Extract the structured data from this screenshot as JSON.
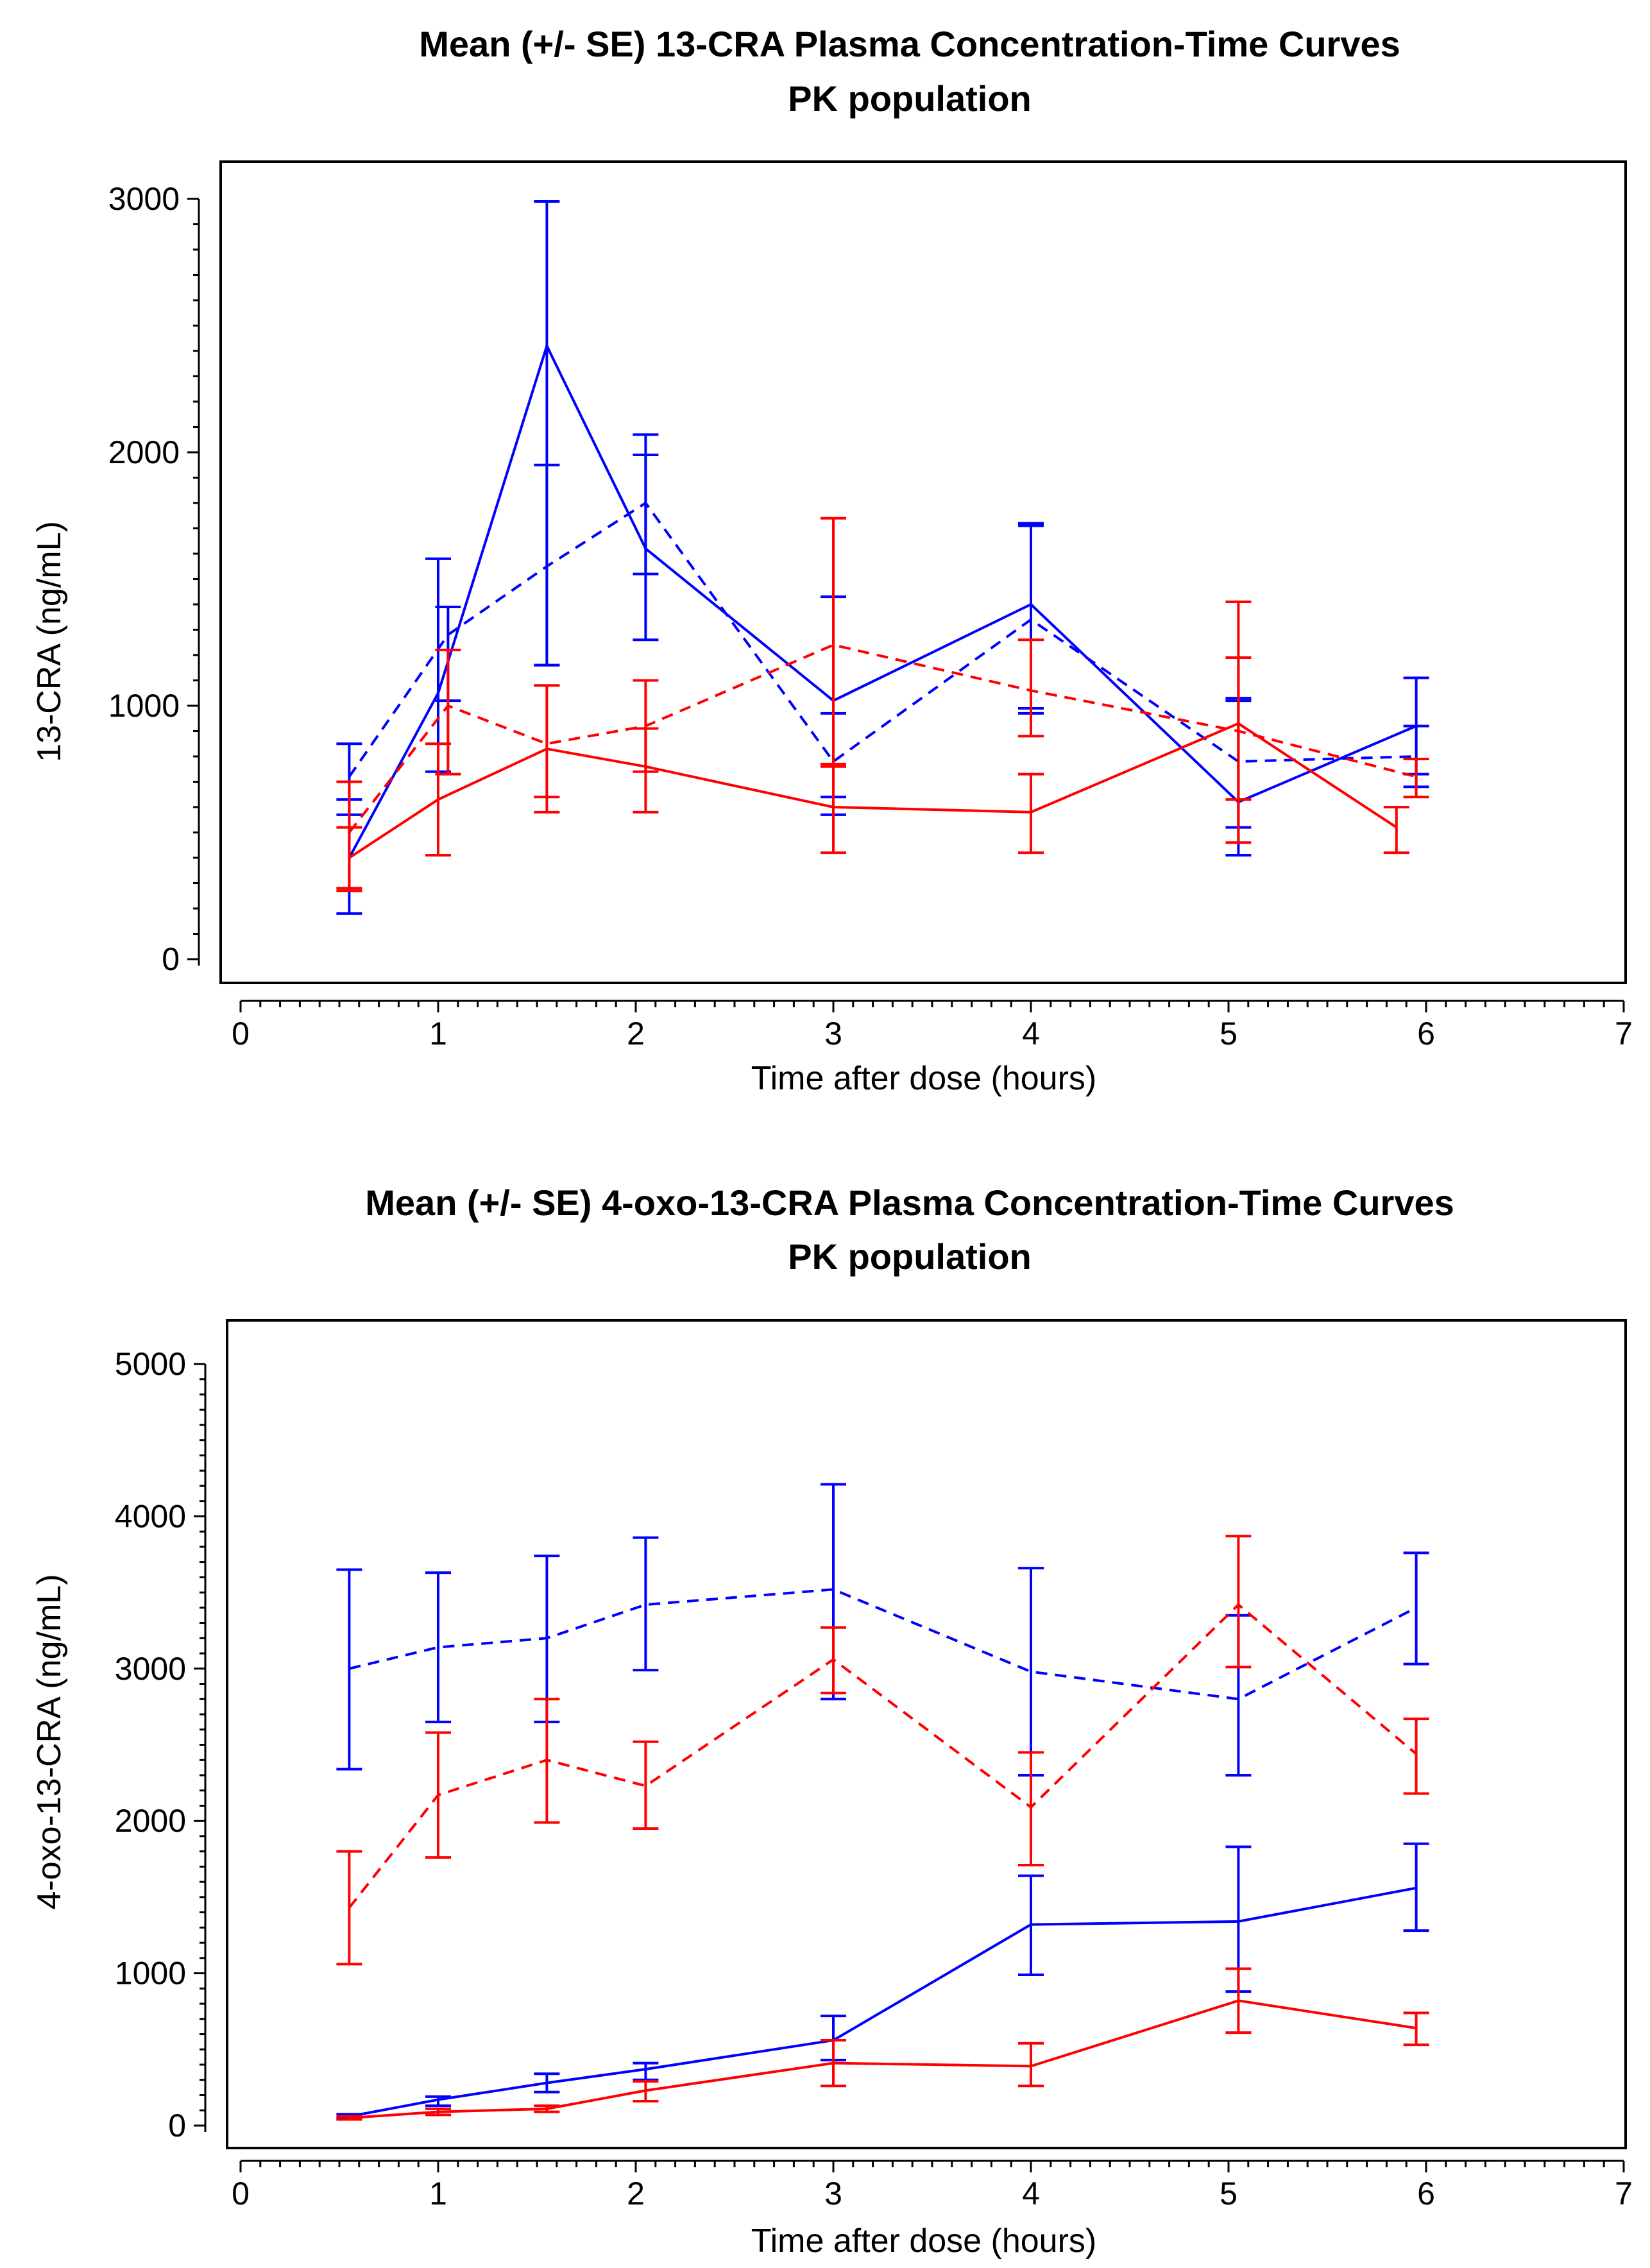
{
  "chart_data": [
    {
      "type": "line",
      "title": "Mean (+/- SE) 13-CRA Plasma Concentration-Time Curves",
      "subtitle": "PK population",
      "xlabel": "Time after dose (hours)",
      "ylabel": "13-CRA (ng/mL)",
      "xlim": [
        0,
        7
      ],
      "ylim": [
        -100,
        3100
      ],
      "xticks": [
        "0",
        "1",
        "2",
        "3",
        "4",
        "5",
        "6",
        "7"
      ],
      "yticks": [
        "0",
        "1000",
        "2000",
        "3000"
      ],
      "grid": false,
      "series": [
        {
          "name": "Blue solid",
          "color": "#0000ff",
          "dash": "solid",
          "x": [
            0.55,
            1.0,
            1.55,
            2.05,
            3.0,
            4.0,
            5.05,
            5.95
          ],
          "y": [
            400,
            1050,
            2420,
            1620,
            1020,
            1400,
            620,
            920
          ],
          "err_low": [
            180,
            740,
            1160,
            1260,
            570,
            990,
            410,
            730
          ],
          "err_high": [
            630,
            1580,
            2990,
            1990,
            1430,
            1720,
            1020,
            1110
          ]
        },
        {
          "name": "Blue dashed",
          "color": "#0000ff",
          "dash": "dashed",
          "x": [
            0.55,
            1.05,
            1.55,
            2.05,
            3.0,
            4.0,
            5.05,
            5.95
          ],
          "y": [
            720,
            1280,
            1550,
            1800,
            780,
            1340,
            780,
            800
          ],
          "err_low": [
            570,
            1020,
            1160,
            1520,
            640,
            970,
            520,
            680
          ],
          "err_high": [
            850,
            1390,
            1950,
            2070,
            970,
            1710,
            1030,
            920
          ]
        },
        {
          "name": "Red solid",
          "color": "#ff0000",
          "dash": "solid",
          "x": [
            0.55,
            1.0,
            1.55,
            2.05,
            3.0,
            4.0,
            5.05,
            5.85
          ],
          "y": [
            400,
            630,
            830,
            760,
            600,
            580,
            930,
            520
          ],
          "err_low": [
            270,
            410,
            580,
            580,
            420,
            420,
            460,
            420
          ],
          "err_high": [
            520,
            850,
            1080,
            910,
            760,
            730,
            1410,
            600
          ]
        },
        {
          "name": "Red dashed",
          "color": "#ff0000",
          "dash": "dashed",
          "x": [
            0.55,
            1.05,
            1.55,
            2.05,
            3.0,
            4.0,
            5.05,
            5.95
          ],
          "y": [
            500,
            1000,
            850,
            920,
            1240,
            1060,
            900,
            720
          ],
          "err_low": [
            280,
            730,
            640,
            740,
            770,
            880,
            630,
            640
          ],
          "err_high": [
            700,
            1220,
            1080,
            1100,
            1740,
            1260,
            1190,
            790
          ]
        }
      ]
    },
    {
      "type": "line",
      "title": "Mean (+/- SE) 4-oxo-13-CRA Plasma Concentration-Time Curves",
      "subtitle": "PK population",
      "xlabel": "Time after dose (hours)",
      "ylabel": "4-oxo-13-CRA (ng/mL)",
      "xlim": [
        0,
        7
      ],
      "ylim": [
        -150,
        5200
      ],
      "xticks": [
        "0",
        "1",
        "2",
        "3",
        "4",
        "5",
        "6",
        "7"
      ],
      "yticks": [
        "0",
        "1000",
        "2000",
        "3000",
        "4000",
        "5000"
      ],
      "grid": false,
      "series": [
        {
          "name": "Blue dashed",
          "color": "#0000ff",
          "dash": "dashed",
          "x": [
            0.55,
            1.0,
            1.55,
            2.05,
            3.0,
            4.0,
            5.05,
            5.95
          ],
          "y": [
            3000,
            3140,
            3200,
            3420,
            3520,
            2980,
            2800,
            3400
          ],
          "err_low": [
            2340,
            2650,
            2650,
            2990,
            2800,
            2300,
            2300,
            3030
          ],
          "err_high": [
            3650,
            3630,
            3740,
            3860,
            4210,
            3660,
            3350,
            3760
          ]
        },
        {
          "name": "Red dashed",
          "color": "#ff0000",
          "dash": "dashed",
          "x": [
            0.55,
            1.0,
            1.55,
            2.05,
            3.0,
            4.0,
            5.05,
            5.95
          ],
          "y": [
            1430,
            2170,
            2400,
            2230,
            3060,
            2090,
            3420,
            2440
          ],
          "err_low": [
            1060,
            1760,
            1990,
            1950,
            2840,
            1710,
            3010,
            2180
          ],
          "err_high": [
            1800,
            2580,
            2800,
            2520,
            3270,
            2450,
            3870,
            2670
          ]
        },
        {
          "name": "Blue solid",
          "color": "#0000ff",
          "dash": "solid",
          "x": [
            0.55,
            1.0,
            1.55,
            2.05,
            3.0,
            4.0,
            5.05,
            5.95
          ],
          "y": [
            60,
            170,
            280,
            370,
            560,
            1320,
            1340,
            1560
          ],
          "err_low": [
            45,
            130,
            220,
            300,
            430,
            990,
            880,
            1280
          ],
          "err_high": [
            75,
            190,
            340,
            410,
            720,
            1640,
            1830,
            1850
          ]
        },
        {
          "name": "Red solid",
          "color": "#ff0000",
          "dash": "solid",
          "x": [
            0.55,
            1.0,
            1.55,
            2.05,
            3.0,
            4.0,
            5.05,
            5.95
          ],
          "y": [
            50,
            90,
            110,
            230,
            410,
            390,
            820,
            640
          ],
          "err_low": [
            40,
            70,
            90,
            160,
            260,
            260,
            610,
            530
          ],
          "err_high": [
            60,
            110,
            130,
            290,
            560,
            540,
            1030,
            740
          ]
        }
      ]
    }
  ]
}
